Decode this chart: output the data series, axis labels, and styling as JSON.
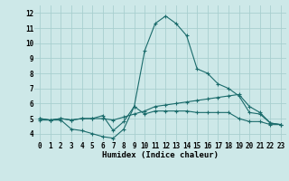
{
  "xlabel": "Humidex (Indice chaleur)",
  "ylabel": "",
  "xlim": [
    -0.5,
    23.5
  ],
  "ylim": [
    3.5,
    12.5
  ],
  "xticks": [
    0,
    1,
    2,
    3,
    4,
    5,
    6,
    7,
    8,
    9,
    10,
    11,
    12,
    13,
    14,
    15,
    16,
    17,
    18,
    19,
    20,
    21,
    22,
    23
  ],
  "yticks": [
    4,
    5,
    6,
    7,
    8,
    9,
    10,
    11,
    12
  ],
  "background_color": "#cde8e8",
  "grid_color": "#a8cfcf",
  "line_color": "#1a6b6b",
  "line1_y": [
    4.9,
    4.9,
    4.9,
    4.3,
    4.2,
    4.0,
    3.8,
    3.7,
    4.3,
    5.8,
    5.3,
    5.5,
    5.5,
    5.5,
    5.5,
    5.4,
    5.4,
    5.4,
    5.4,
    5.0,
    4.8,
    4.8,
    4.6,
    4.6
  ],
  "line2_y": [
    5.0,
    4.9,
    5.0,
    4.9,
    5.0,
    5.0,
    5.0,
    4.9,
    5.1,
    5.3,
    5.5,
    5.8,
    5.9,
    6.0,
    6.1,
    6.2,
    6.3,
    6.4,
    6.5,
    6.6,
    5.8,
    5.4,
    4.7,
    4.6
  ],
  "line3_y": [
    5.0,
    4.9,
    5.0,
    4.9,
    5.0,
    5.0,
    5.2,
    4.2,
    4.8,
    5.8,
    9.5,
    11.3,
    11.8,
    11.3,
    10.5,
    8.3,
    8.0,
    7.3,
    7.0,
    6.5,
    5.4,
    5.3,
    4.7,
    4.6
  ],
  "xlabel_fontsize": 6.5,
  "tick_fontsize": 5.5
}
